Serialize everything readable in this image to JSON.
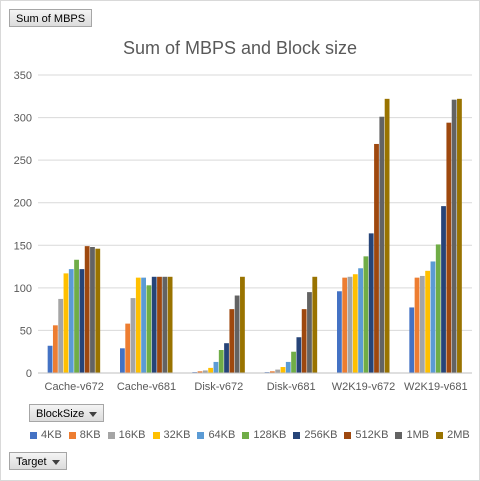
{
  "field_buttons": {
    "value_field": "Sum of MBPS",
    "axis_field": "BlockSize",
    "filter_field": "Target"
  },
  "chart_data": {
    "type": "bar",
    "title": "Sum of MBPS and Block size",
    "xlabel": "",
    "ylabel": "",
    "ylim": [
      0,
      350
    ],
    "yticks": [
      0,
      50,
      100,
      150,
      200,
      250,
      300,
      350
    ],
    "grid": true,
    "legend_position": "bottom",
    "categories": [
      "Cache-v672",
      "Cache-v681",
      "Disk-v672",
      "Disk-v681",
      "W2K19-v672",
      "W2K19-v681"
    ],
    "series": [
      {
        "name": "4KB",
        "color": "#4472c4",
        "values": [
          32,
          29,
          1,
          1,
          96,
          77
        ]
      },
      {
        "name": "8KB",
        "color": "#ed7d31",
        "values": [
          56,
          58,
          2,
          2,
          112,
          112
        ]
      },
      {
        "name": "16KB",
        "color": "#a5a5a5",
        "values": [
          87,
          88,
          3,
          4,
          113,
          114
        ]
      },
      {
        "name": "32KB",
        "color": "#ffc000",
        "values": [
          117,
          112,
          6,
          7,
          116,
          120
        ]
      },
      {
        "name": "64KB",
        "color": "#5b9bd5",
        "values": [
          122,
          112,
          13,
          13,
          123,
          131
        ]
      },
      {
        "name": "128KB",
        "color": "#70ad47",
        "values": [
          133,
          103,
          27,
          25,
          137,
          151
        ]
      },
      {
        "name": "256KB",
        "color": "#264478",
        "values": [
          122,
          113,
          35,
          42,
          164,
          196
        ]
      },
      {
        "name": "512KB",
        "color": "#9e480e",
        "values": [
          149,
          113,
          75,
          75,
          269,
          294
        ]
      },
      {
        "name": "1MB",
        "color": "#636363",
        "values": [
          148,
          113,
          91,
          95,
          301,
          321
        ]
      },
      {
        "name": "2MB",
        "color": "#997300",
        "values": [
          146,
          113,
          113,
          113,
          322,
          322
        ]
      }
    ]
  }
}
